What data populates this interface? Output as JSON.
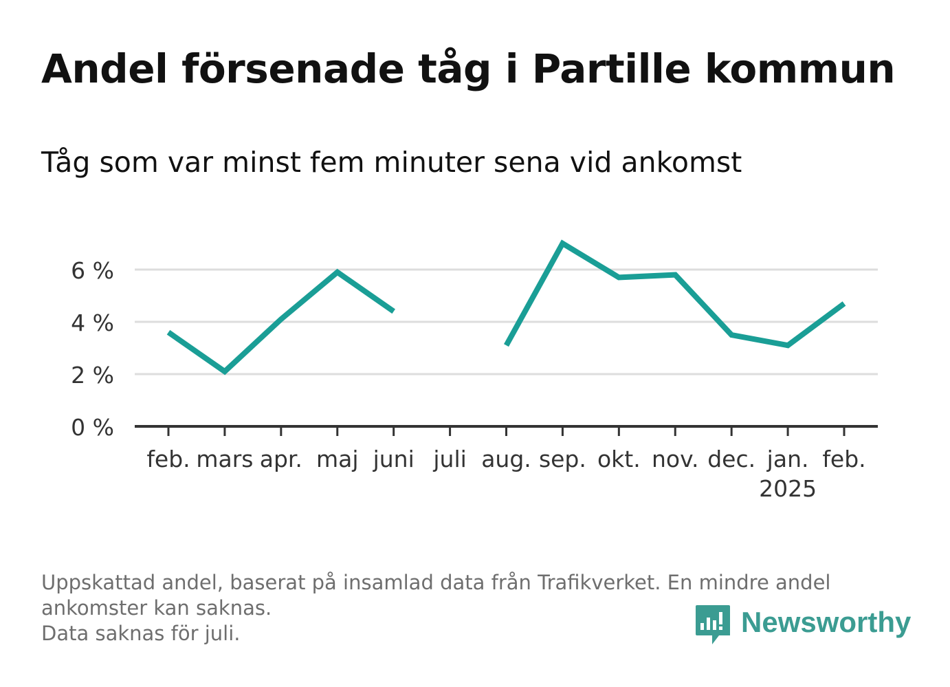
{
  "header": {
    "title": "Andel försenade tåg i Partille kommun",
    "subtitle": "Tåg som var minst fem minuter sena vid ankomst"
  },
  "chart_data": {
    "type": "line",
    "categories": [
      "feb.",
      "mars",
      "apr.",
      "maj",
      "juni",
      "juli",
      "aug.",
      "sep.",
      "okt.",
      "nov.",
      "dec.",
      "jan.",
      "feb."
    ],
    "x_sublabels": [
      "",
      "",
      "",
      "",
      "",
      "",
      "",
      "",
      "",
      "",
      "",
      "2025",
      ""
    ],
    "series": [
      {
        "values": [
          3.6,
          2.1,
          4.1,
          5.9,
          4.4,
          null,
          3.1,
          7.0,
          5.7,
          5.8,
          3.5,
          3.1,
          4.7
        ]
      }
    ],
    "yticks": [
      0,
      2,
      4,
      6
    ],
    "ytick_labels": [
      "0 %",
      "2 %",
      "4 %",
      "6 %"
    ],
    "ylim": [
      0,
      7.3
    ],
    "grid": true,
    "legend": "none",
    "colors": {
      "line": "#1a9e96",
      "grid": "#dddddd",
      "axis": "#333333",
      "tick_text": "#333333"
    }
  },
  "footer": {
    "note_line1": "Uppskattad andel, baserat på insamlad data från Trafikverket. En mindre andel ankomster kan saknas.",
    "note_line2": "Data saknas för juli.",
    "brand_name": "Newsworthy",
    "brand_icon": "newsworthy-logo-icon",
    "brand_color": "#3b9c92"
  }
}
